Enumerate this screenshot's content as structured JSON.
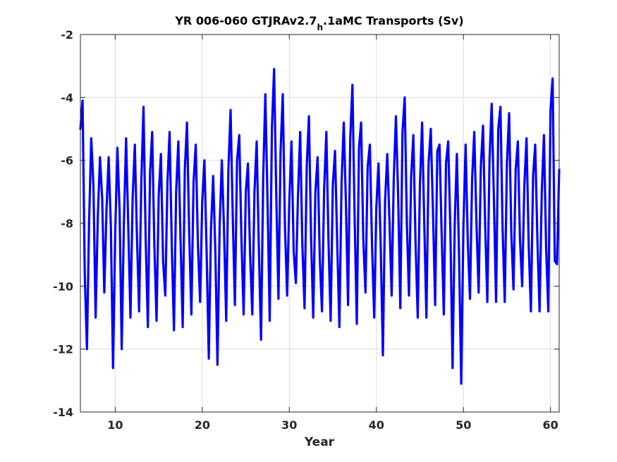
{
  "chart_data": {
    "type": "line",
    "title_main": "YR 006-060 GTJRAv2.7",
    "title_sub": "h",
    "title_rest": ".1aMC Transports (Sv)",
    "xlabel": "Year",
    "ylabel": "",
    "xlim": [
      6,
      61
    ],
    "ylim": [
      -14,
      -2
    ],
    "xticks": [
      10,
      20,
      30,
      40,
      50,
      60
    ],
    "yticks": [
      -14,
      -12,
      -10,
      -8,
      -6,
      -4,
      -2
    ],
    "grid": true,
    "series": [
      {
        "color": "#0000ff",
        "x": [
          6.0,
          6.25,
          6.5,
          6.75,
          7.0,
          7.25,
          7.5,
          7.75,
          8.0,
          8.25,
          8.5,
          8.75,
          9.0,
          9.25,
          9.5,
          9.75,
          10.0,
          10.25,
          10.5,
          10.75,
          11.0,
          11.25,
          11.5,
          11.75,
          12.0,
          12.25,
          12.5,
          12.75,
          13.0,
          13.25,
          13.5,
          13.75,
          14.0,
          14.25,
          14.5,
          14.75,
          15.0,
          15.25,
          15.5,
          15.75,
          16.0,
          16.25,
          16.5,
          16.75,
          17.0,
          17.25,
          17.5,
          17.75,
          18.0,
          18.25,
          18.5,
          18.75,
          19.0,
          19.25,
          19.5,
          19.75,
          20.0,
          20.25,
          20.5,
          20.75,
          21.0,
          21.25,
          21.5,
          21.75,
          22.0,
          22.25,
          22.5,
          22.75,
          23.0,
          23.25,
          23.5,
          23.75,
          24.0,
          24.25,
          24.5,
          24.75,
          25.0,
          25.25,
          25.5,
          25.75,
          26.0,
          26.25,
          26.5,
          26.75,
          27.0,
          27.25,
          27.5,
          27.75,
          28.0,
          28.25,
          28.5,
          28.75,
          29.0,
          29.25,
          29.5,
          29.75,
          30.0,
          30.25,
          30.5,
          30.75,
          31.0,
          31.25,
          31.5,
          31.75,
          32.0,
          32.25,
          32.5,
          32.75,
          33.0,
          33.25,
          33.5,
          33.75,
          34.0,
          34.25,
          34.5,
          34.75,
          35.0,
          35.25,
          35.5,
          35.75,
          36.0,
          36.25,
          36.5,
          36.75,
          37.0,
          37.25,
          37.5,
          37.75,
          38.0,
          38.25,
          38.5,
          38.75,
          39.0,
          39.25,
          39.5,
          39.75,
          40.0,
          40.25,
          40.5,
          40.75,
          41.0,
          41.25,
          41.5,
          41.75,
          42.0,
          42.25,
          42.5,
          42.75,
          43.0,
          43.25,
          43.5,
          43.75,
          44.0,
          44.25,
          44.5,
          44.75,
          45.0,
          45.25,
          45.5,
          45.75,
          46.0,
          46.25,
          46.5,
          46.75,
          47.0,
          47.25,
          47.5,
          47.75,
          48.0,
          48.25,
          48.5,
          48.75,
          49.0,
          49.25,
          49.5,
          49.75,
          50.0,
          50.25,
          50.5,
          50.75,
          51.0,
          51.25,
          51.5,
          51.75,
          52.0,
          52.25,
          52.5,
          52.75,
          53.0,
          53.25,
          53.5,
          53.75,
          54.0,
          54.25,
          54.5,
          54.75,
          55.0,
          55.25,
          55.5,
          55.75,
          56.0,
          56.25,
          56.5,
          56.75,
          57.0,
          57.25,
          57.5,
          57.75,
          58.0,
          58.25,
          58.5,
          58.75,
          59.0,
          59.25,
          59.5,
          59.75,
          60.0,
          60.25,
          60.5,
          60.75,
          61.0
        ],
        "y": [
          -5.0,
          -4.1,
          -9.6,
          -12.0,
          -8.0,
          -5.3,
          -6.8,
          -11.0,
          -7.8,
          -5.9,
          -7.2,
          -10.2,
          -7.6,
          -5.9,
          -8.1,
          -12.6,
          -8.3,
          -5.6,
          -7.6,
          -12.0,
          -8.0,
          -5.3,
          -8.1,
          -11.0,
          -7.2,
          -5.5,
          -8.4,
          -10.8,
          -6.7,
          -4.3,
          -8.5,
          -11.3,
          -6.4,
          -5.1,
          -8.7,
          -11.1,
          -7.1,
          -5.8,
          -9.2,
          -10.3,
          -6.7,
          -5.1,
          -8.7,
          -11.4,
          -7.0,
          -5.4,
          -8.5,
          -11.3,
          -6.3,
          -4.8,
          -8.3,
          -10.9,
          -6.7,
          -5.5,
          -8.7,
          -10.5,
          -7.3,
          -6.0,
          -8.9,
          -12.3,
          -8.2,
          -6.5,
          -8.9,
          -12.5,
          -8.1,
          -6.0,
          -8.2,
          -11.1,
          -6.3,
          -4.4,
          -7.7,
          -10.6,
          -6.0,
          -5.2,
          -8.5,
          -10.9,
          -7.0,
          -6.1,
          -9.0,
          -10.9,
          -7.0,
          -5.4,
          -8.8,
          -11.7,
          -6.5,
          -3.9,
          -7.3,
          -11.1,
          -5.0,
          -3.1,
          -7.1,
          -10.4,
          -5.7,
          -3.9,
          -8.1,
          -10.3,
          -7.3,
          -5.4,
          -8.9,
          -9.9,
          -7.1,
          -5.1,
          -8.7,
          -10.7,
          -6.2,
          -4.6,
          -8.5,
          -11.0,
          -7.0,
          -5.9,
          -9.1,
          -10.8,
          -6.9,
          -5.1,
          -8.5,
          -11.1,
          -6.8,
          -5.7,
          -8.6,
          -11.3,
          -6.7,
          -4.8,
          -7.3,
          -10.6,
          -5.3,
          -3.6,
          -7.8,
          -11.2,
          -5.6,
          -4.8,
          -8.5,
          -10.2,
          -6.2,
          -5.5,
          -8.7,
          -11.0,
          -7.5,
          -6.1,
          -8.7,
          -12.2,
          -7.3,
          -5.8,
          -7.9,
          -10.3,
          -6.6,
          -4.6,
          -7.1,
          -10.7,
          -5.1,
          -4.0,
          -8.0,
          -10.3,
          -6.5,
          -5.2,
          -8.6,
          -11.0,
          -6.8,
          -4.8,
          -7.9,
          -11.0,
          -6.1,
          -5.0,
          -7.6,
          -10.6,
          -5.7,
          -5.5,
          -8.3,
          -10.9,
          -6.1,
          -5.4,
          -8.2,
          -12.6,
          -8.0,
          -5.8,
          -9.0,
          -13.1,
          -8.1,
          -5.5,
          -8.6,
          -10.4,
          -6.6,
          -5.1,
          -8.0,
          -10.2,
          -6.2,
          -4.9,
          -8.1,
          -10.5,
          -6.0,
          -4.2,
          -7.2,
          -10.5,
          -5.0,
          -4.3,
          -8.2,
          -10.5,
          -6.1,
          -4.5,
          -8.3,
          -10.1,
          -6.3,
          -5.4,
          -8.5,
          -10.0,
          -6.8,
          -5.3,
          -8.7,
          -10.8,
          -6.5,
          -5.5,
          -8.5,
          -10.8,
          -7.0,
          -5.2,
          -8.8,
          -10.8,
          -4.4,
          -3.4,
          -9.2,
          -9.3,
          -6.3
        ]
      }
    ]
  }
}
